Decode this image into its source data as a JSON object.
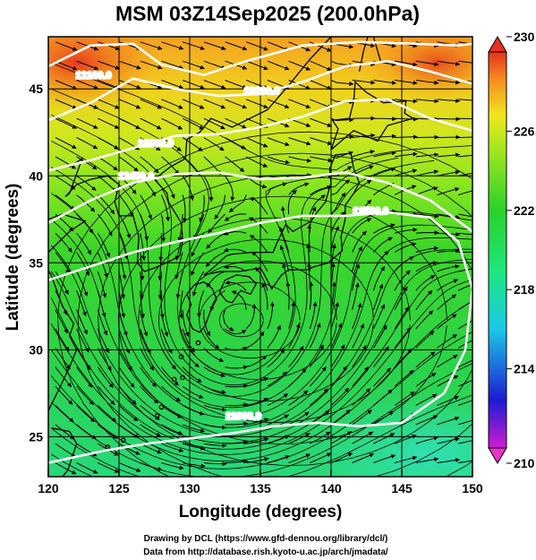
{
  "map": {
    "title": "MSM 03Z14Sep2025 (200.0hPa)",
    "x_axis_label": "Longitude (degrees)",
    "y_axis_label": "Latitude  (degrees)",
    "lon_range": [
      120,
      150
    ],
    "lat_range": [
      22.7,
      48
    ],
    "lon_ticks": [
      "120",
      "125",
      "130",
      "135",
      "140",
      "145",
      "150"
    ],
    "lat_ticks": [
      "25",
      "30",
      "35",
      "40",
      "45"
    ],
    "projection": "equirectangular",
    "gridlines": true,
    "vortex_center": {
      "lon": 133.2,
      "lat": 31.7
    }
  },
  "colorbar": {
    "min": 210,
    "max": 230,
    "tick_labels": [
      "230",
      "226",
      "222",
      "218",
      "214",
      "210"
    ],
    "colors": [
      "#d21cd2",
      "#1c1cd2",
      "#1cc8e6",
      "#1ee67a",
      "#28d228",
      "#a0e61e",
      "#f0e61e",
      "#f58c1e",
      "#e6321e"
    ]
  },
  "contours": [
    {
      "label": "12100.0",
      "label_lon": 123.2,
      "label_lat": 45.6
    },
    {
      "label": "12200.0",
      "label_lon": 135.1,
      "label_lat": 44.7
    },
    {
      "label": "12300.0",
      "label_lon": 127.6,
      "label_lat": 41.7
    },
    {
      "label": "12400.0",
      "label_lon": 126.2,
      "label_lat": 39.8
    },
    {
      "label": "12500.0",
      "label_lon": 142.8,
      "label_lat": 37.8
    },
    {
      "label": "12600.0",
      "label_lon": 133.8,
      "label_lat": 26.0
    }
  ],
  "credits": {
    "line1": "Drawing by DCL (https://www.gfd-dennou.org/library/dcl/)",
    "line2": "Data from http://database.rish.kyoto-u.ac.jp/arch/jmadata/"
  }
}
